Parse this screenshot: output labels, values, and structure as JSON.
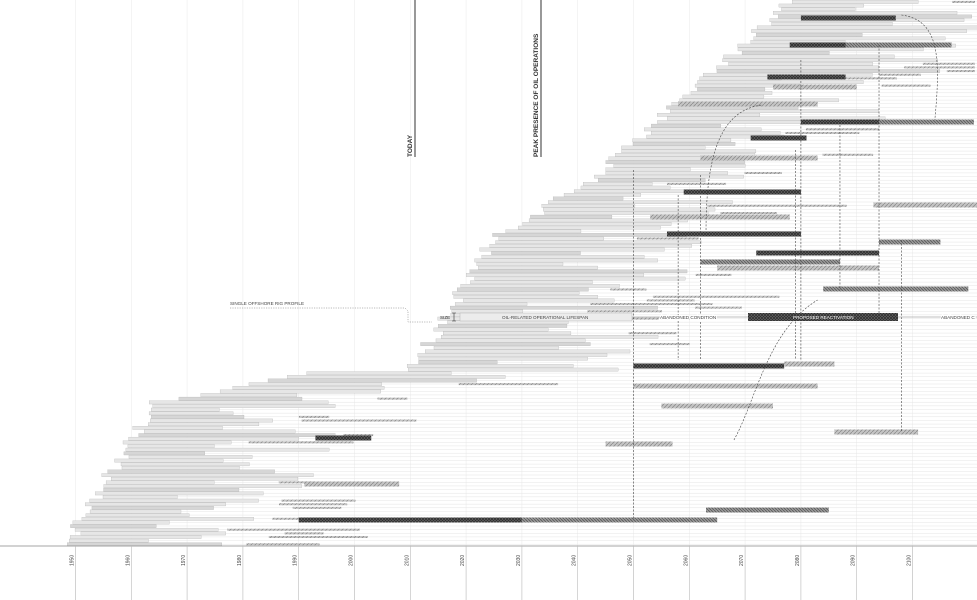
{
  "chart_data": {
    "type": "gantt-timeline",
    "xaxis": {
      "ticks": [
        "1950",
        "1960",
        "1970",
        "1980",
        "1990",
        "2000",
        "2010",
        "2020",
        "2030",
        "2040",
        "2050",
        "2060",
        "2070",
        "2080",
        "2090",
        "2100"
      ],
      "range": [
        1941,
        2115
      ]
    },
    "annotations": {
      "today_label": "TODAY",
      "today_year": 2013,
      "peak_label": "PEAK PRESENCE OF OIL OPERATIONS",
      "peak_year": 2035
    },
    "legend": {
      "title": "SINGLE OFFSHORE RIG PROFILE",
      "size_label": "SIZE",
      "lifespan_label": "OIL-RELATED OPERATIONAL LIFESPAN",
      "abandoned_label": "ABANDONED CONDITION",
      "reactivation_label": "PROPOSED REACTIVATION",
      "abandoned_cont_label": "ABANDONED C"
    },
    "rig_count_approx": 150,
    "colors": {
      "operational": "#e2e2e2",
      "operational_edge": "#9a9a9a",
      "abandoned_line": "#c9c9c9",
      "reactivation_dark": "#4a4a4a",
      "reactivation_mid": "#8a8a8a",
      "reactivation_light": "#bcbcbc"
    }
  }
}
